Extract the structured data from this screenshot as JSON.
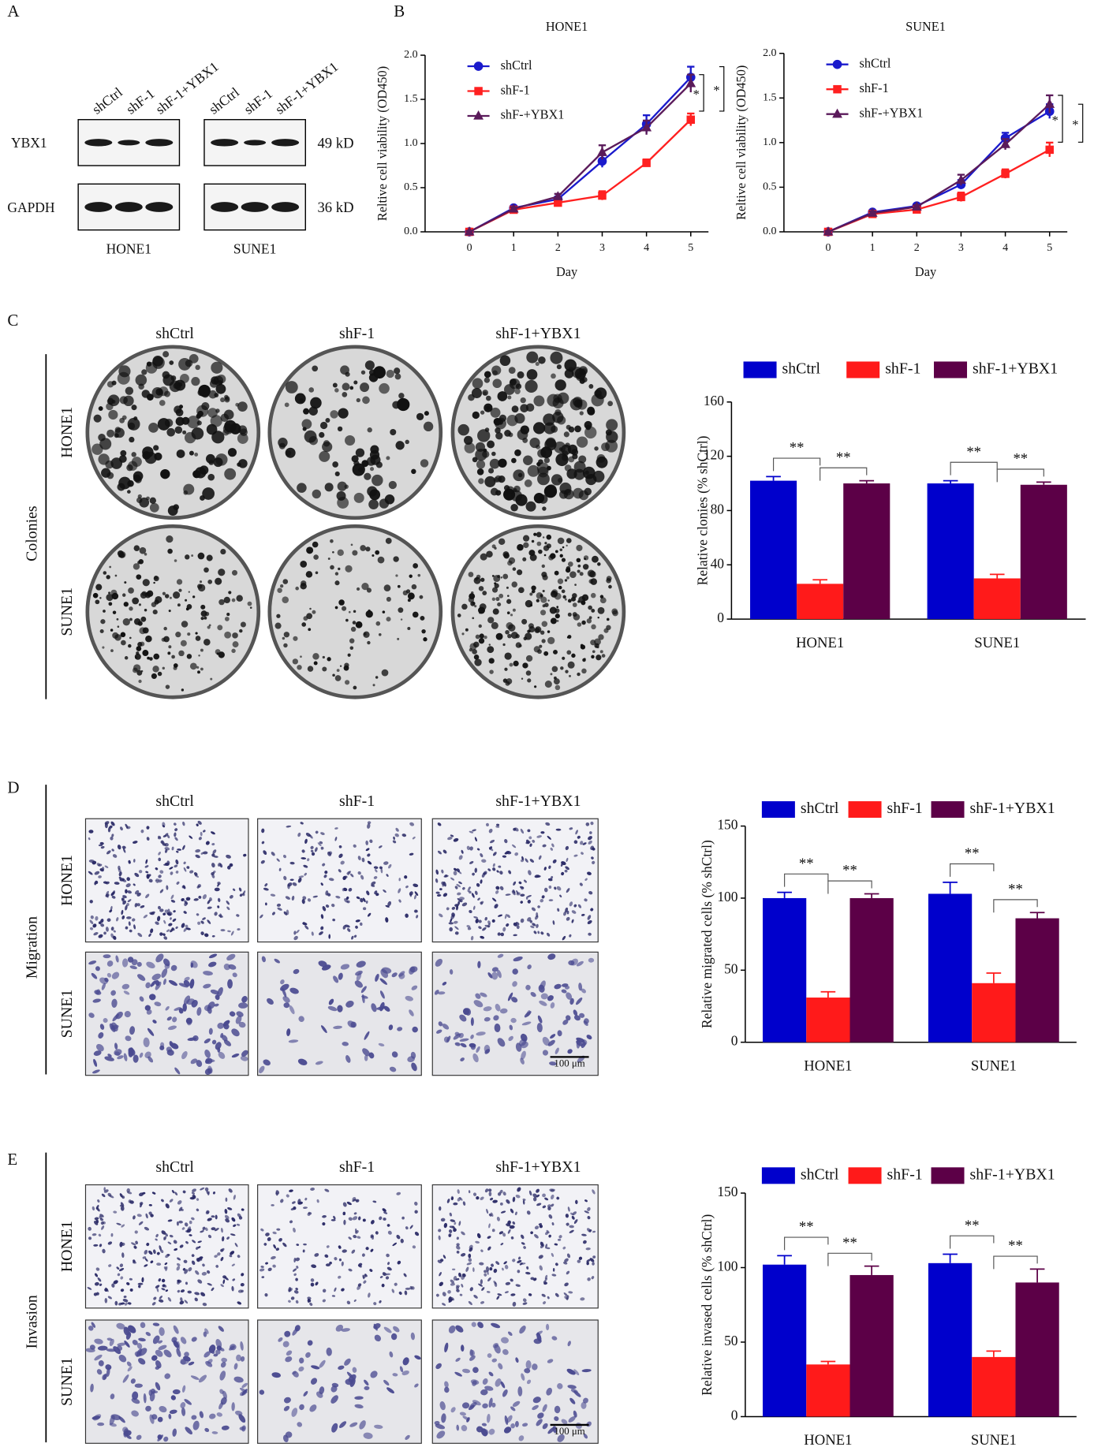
{
  "figure": {
    "panel_letters": [
      "A",
      "B",
      "C",
      "D",
      "E"
    ],
    "blot": {
      "lanes": [
        "shCtrl",
        "shF-1",
        "shF-1+YBX1"
      ],
      "proteins": [
        "YBX1",
        "GAPDH"
      ],
      "sizes": [
        "49 kD",
        "36 kD"
      ],
      "cells": [
        "HONE1",
        "SUNE1"
      ]
    },
    "columns": [
      "shCtrl",
      "shF-1",
      "shF-1+YBX1"
    ],
    "rows": [
      "HONE1",
      "SUNE1"
    ],
    "assays": [
      "Colonies",
      "Migration",
      "Invasion"
    ],
    "scale_bar": "100 μm"
  },
  "chart_data": [
    {
      "type": "line",
      "title": "HONE1",
      "xlabel": "Day",
      "ylabel": "Reltive cell viability (OD450)",
      "x": [
        0,
        1,
        2,
        3,
        4,
        5
      ],
      "xlim": [
        -1,
        5.4
      ],
      "xticks": [
        0,
        1,
        2,
        3,
        4,
        5
      ],
      "ylim": [
        0,
        2
      ],
      "yticks": [
        {
          "value": 0,
          "label": "0.0"
        },
        0.5,
        {
          "value": 1,
          "label": "1.0"
        },
        1.5,
        {
          "value": 2,
          "label": "2.0"
        }
      ],
      "series": [
        {
          "name": "shCtrl",
          "color": "#1a1acc",
          "marker": "circle",
          "values": [
            0,
            0.27,
            0.37,
            0.8,
            1.22,
            1.75
          ],
          "errors": [
            0.01,
            0.02,
            0.03,
            0.07,
            0.1,
            0.12
          ]
        },
        {
          "name": "shF-1",
          "color": "#ff2020",
          "marker": "square",
          "values": [
            0,
            0.25,
            0.33,
            0.41,
            0.78,
            1.27
          ],
          "errors": [
            0.01,
            0.02,
            0.03,
            0.05,
            0.04,
            0.07
          ]
        },
        {
          "name": "shF-+YBX1",
          "color": "#5a1a5a",
          "marker": "triangle",
          "values": [
            0,
            0.26,
            0.4,
            0.9,
            1.18,
            1.68
          ],
          "errors": [
            0.01,
            0.02,
            0.03,
            0.08,
            0.08,
            0.1
          ]
        }
      ],
      "annotations": [
        "*",
        "*"
      ]
    },
    {
      "type": "line",
      "title": "SUNE1",
      "xlabel": "Day",
      "ylabel": "Reltive cell viability (OD450)",
      "x": [
        0,
        1,
        2,
        3,
        4,
        5
      ],
      "xlim": [
        -1,
        5.4
      ],
      "xticks": [
        0,
        1,
        2,
        3,
        4,
        5
      ],
      "ylim": [
        0,
        2
      ],
      "yticks": [
        {
          "value": 0,
          "label": "0.0"
        },
        0.5,
        {
          "value": 1,
          "label": "1.0"
        },
        1.5,
        {
          "value": 2,
          "label": "2.0"
        }
      ],
      "series": [
        {
          "name": "shCtrl",
          "color": "#1a1acc",
          "marker": "circle",
          "values": [
            0,
            0.22,
            0.29,
            0.53,
            1.05,
            1.35
          ],
          "errors": [
            0.01,
            0.02,
            0.02,
            0.05,
            0.06,
            0.08
          ]
        },
        {
          "name": "shF-1",
          "color": "#ff2020",
          "marker": "square",
          "values": [
            0,
            0.2,
            0.25,
            0.39,
            0.65,
            0.92
          ],
          "errors": [
            0.01,
            0.02,
            0.02,
            0.05,
            0.05,
            0.08
          ]
        },
        {
          "name": "shF-+YBX1",
          "color": "#5a1a5a",
          "marker": "triangle",
          "values": [
            0,
            0.21,
            0.28,
            0.58,
            0.98,
            1.43
          ],
          "errors": [
            0.01,
            0.02,
            0.02,
            0.06,
            0.06,
            0.1
          ]
        }
      ],
      "annotations": [
        "*",
        "*"
      ]
    },
    {
      "type": "bar",
      "ylabel": "Relative clonies (% shCtrl)",
      "categories": [
        "HONE1",
        "SUNE1"
      ],
      "ylim": [
        0,
        160
      ],
      "yticks": [
        0,
        40,
        80,
        120,
        160
      ],
      "series": [
        {
          "name": "shCtrl",
          "color": "#0000cc",
          "values": [
            102,
            100
          ],
          "errors": [
            3,
            2
          ]
        },
        {
          "name": "shF-1",
          "color": "#ff1a1a",
          "values": [
            26,
            30
          ],
          "errors": [
            3,
            3
          ]
        },
        {
          "name": "shF-1+YBX1",
          "color": "#5c0047",
          "values": [
            100,
            99
          ],
          "errors": [
            2,
            2
          ]
        }
      ],
      "annotations": [
        "**",
        "**",
        "**",
        "**"
      ]
    },
    {
      "type": "bar",
      "ylabel": "Relative migrated cells (% shCtrl)",
      "categories": [
        "HONE1",
        "SUNE1"
      ],
      "ylim": [
        0,
        150
      ],
      "yticks": [
        0,
        50,
        100,
        150
      ],
      "series": [
        {
          "name": "shCtrl",
          "color": "#0000cc",
          "values": [
            100,
            103
          ],
          "errors": [
            4,
            8
          ]
        },
        {
          "name": "shF-1",
          "color": "#ff1a1a",
          "values": [
            31,
            41
          ],
          "errors": [
            4,
            7
          ]
        },
        {
          "name": "shF-1+YBX1",
          "color": "#5c0047",
          "values": [
            100,
            86
          ],
          "errors": [
            3,
            4
          ]
        }
      ],
      "annotations": [
        "**",
        "**",
        "**",
        "**"
      ]
    },
    {
      "type": "bar",
      "ylabel": "Relative invased cells (% shCtrl)",
      "categories": [
        "HONE1",
        "SUNE1"
      ],
      "ylim": [
        0,
        150
      ],
      "yticks": [
        0,
        50,
        100,
        150
      ],
      "series": [
        {
          "name": "shCtrl",
          "color": "#0000cc",
          "values": [
            102,
            103
          ],
          "errors": [
            6,
            6
          ]
        },
        {
          "name": "shF-1",
          "color": "#ff1a1a",
          "values": [
            35,
            40
          ],
          "errors": [
            2,
            4
          ]
        },
        {
          "name": "shF-1+YBX1",
          "color": "#5c0047",
          "values": [
            95,
            90
          ],
          "errors": [
            6,
            9
          ]
        }
      ],
      "annotations": [
        "**",
        "**",
        "**",
        "**"
      ]
    }
  ]
}
